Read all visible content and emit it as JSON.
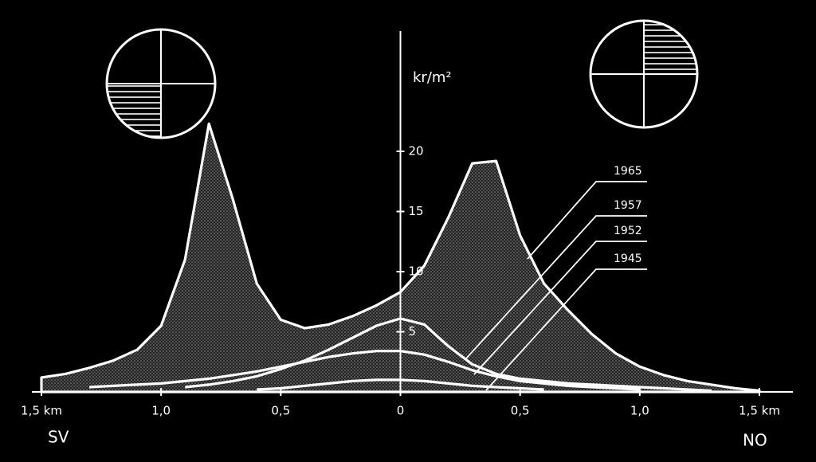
{
  "chart_data": {
    "type": "area",
    "ylabel": "kr/m²",
    "annotations": [
      "SV",
      "NO"
    ],
    "x": [
      -1.5,
      -1.4,
      -1.3,
      -1.2,
      -1.1,
      -1.0,
      -0.9,
      -0.8,
      -0.7,
      -0.6,
      -0.5,
      -0.4,
      -0.3,
      -0.2,
      -0.1,
      0,
      0.1,
      0.2,
      0.3,
      0.4,
      0.5,
      0.6,
      0.7,
      0.8,
      0.9,
      1.0,
      1.1,
      1.2,
      1.3,
      1.4,
      1.5
    ],
    "series": [
      {
        "name": "1965",
        "color": "#ffffff",
        "fill": true,
        "values": [
          1.2,
          1.5,
          2.0,
          2.6,
          3.5,
          5.5,
          11,
          22.3,
          16,
          9,
          6,
          5.3,
          5.6,
          6.3,
          7.2,
          8.3,
          10.5,
          14.5,
          19,
          19.2,
          13,
          9,
          6.8,
          4.8,
          3.2,
          2.1,
          1.4,
          0.9,
          0.6,
          0.3,
          0.1
        ]
      },
      {
        "name": "1957",
        "color": "#ffffff",
        "values": [
          null,
          null,
          null,
          null,
          null,
          null,
          0.4,
          0.6,
          0.9,
          1.3,
          1.9,
          2.6,
          3.5,
          4.5,
          5.5,
          6.1,
          5.6,
          3.8,
          2.3,
          1.5,
          1.1,
          0.9,
          0.7,
          0.6,
          0.5,
          0.4,
          0.3,
          0.2,
          0.1,
          null,
          null
        ]
      },
      {
        "name": "1952",
        "color": "#ffffff",
        "values": [
          null,
          null,
          0.4,
          0.5,
          0.6,
          0.7,
          0.9,
          1.1,
          1.4,
          1.7,
          2.1,
          2.5,
          2.9,
          3.2,
          3.4,
          3.4,
          3.1,
          2.5,
          1.8,
          1.3,
          0.9,
          0.7,
          0.5,
          0.4,
          0.3,
          0.2,
          null,
          null,
          null,
          null,
          null
        ]
      },
      {
        "name": "1945",
        "color": "#ffffff",
        "values": [
          null,
          null,
          null,
          null,
          null,
          null,
          null,
          null,
          null,
          0.2,
          0.3,
          0.5,
          0.7,
          0.9,
          1.0,
          1.0,
          0.9,
          0.7,
          0.5,
          0.4,
          0.3,
          0.2,
          null,
          null,
          null,
          null,
          null,
          null,
          null,
          null,
          null
        ]
      }
    ],
    "xlim": [
      -1.5,
      1.5
    ],
    "xticks": [
      {
        "value": -1.5,
        "label": "1,5 km"
      },
      {
        "value": -1.0,
        "label": "1,0"
      },
      {
        "value": -0.5,
        "label": "0,5"
      },
      0,
      {
        "value": 0.5,
        "label": "0,5"
      },
      {
        "value": 1.0,
        "label": "1,0"
      },
      {
        "value": 1.5,
        "label": "1,5 km"
      }
    ],
    "ylim": [
      0,
      30
    ],
    "yticks": [
      5,
      10,
      15,
      20
    ]
  }
}
